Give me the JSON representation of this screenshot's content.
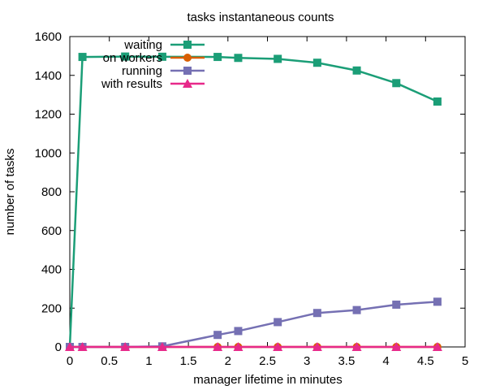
{
  "chart_data": {
    "type": "line",
    "title": "tasks instantaneous counts",
    "xlabel": "manager lifetime in minutes",
    "ylabel": "number of tasks",
    "xlim": [
      0,
      5
    ],
    "ylim": [
      0,
      1600
    ],
    "xticks": [
      0,
      0.5,
      1,
      1.5,
      2,
      2.5,
      3,
      3.5,
      4,
      4.5,
      5
    ],
    "xtick_labels": [
      "0",
      "0.5",
      "1",
      "1.5",
      "2",
      "2.5",
      "3",
      "3.5",
      "4",
      "4.5",
      "5"
    ],
    "yticks": [
      0,
      200,
      400,
      600,
      800,
      1000,
      1200,
      1400,
      1600
    ],
    "ytick_labels": [
      "0",
      "200",
      "400",
      "600",
      "800",
      "1000",
      "1200",
      "1400",
      "1600"
    ],
    "grid": false,
    "legend_position": "top-left",
    "series": [
      {
        "name": "waiting",
        "color": "#1b9e77",
        "marker": "square",
        "x": [
          0,
          0.16,
          0.7,
          1.17,
          1.87,
          2.13,
          2.63,
          3.13,
          3.63,
          4.13,
          4.65
        ],
        "y": [
          0,
          1495,
          1497,
          1496,
          1495,
          1490,
          1485,
          1465,
          1425,
          1360,
          1265
        ]
      },
      {
        "name": "on workers",
        "color": "#d95f02",
        "marker": "circle",
        "x": [
          0,
          0.16,
          0.7,
          1.17,
          1.87,
          2.13,
          2.63,
          3.13,
          3.63,
          4.13,
          4.65
        ],
        "y": [
          0,
          0,
          0,
          0,
          0,
          0,
          0,
          0,
          0,
          0,
          0
        ]
      },
      {
        "name": "running",
        "color": "#7570b3",
        "marker": "square",
        "x": [
          0,
          0.16,
          0.7,
          1.17,
          1.87,
          2.13,
          2.63,
          3.13,
          3.63,
          4.13,
          4.65
        ],
        "y": [
          0,
          0,
          0,
          3,
          62,
          82,
          128,
          175,
          190,
          218,
          233
        ]
      },
      {
        "name": "with results",
        "color": "#e7298a",
        "marker": "triangle",
        "x": [
          0,
          0.16,
          0.7,
          1.17,
          1.87,
          2.13,
          2.63,
          3.13,
          3.63,
          4.13,
          4.65
        ],
        "y": [
          0,
          0,
          0,
          0,
          0,
          0,
          0,
          0,
          0,
          0,
          0
        ]
      }
    ]
  }
}
